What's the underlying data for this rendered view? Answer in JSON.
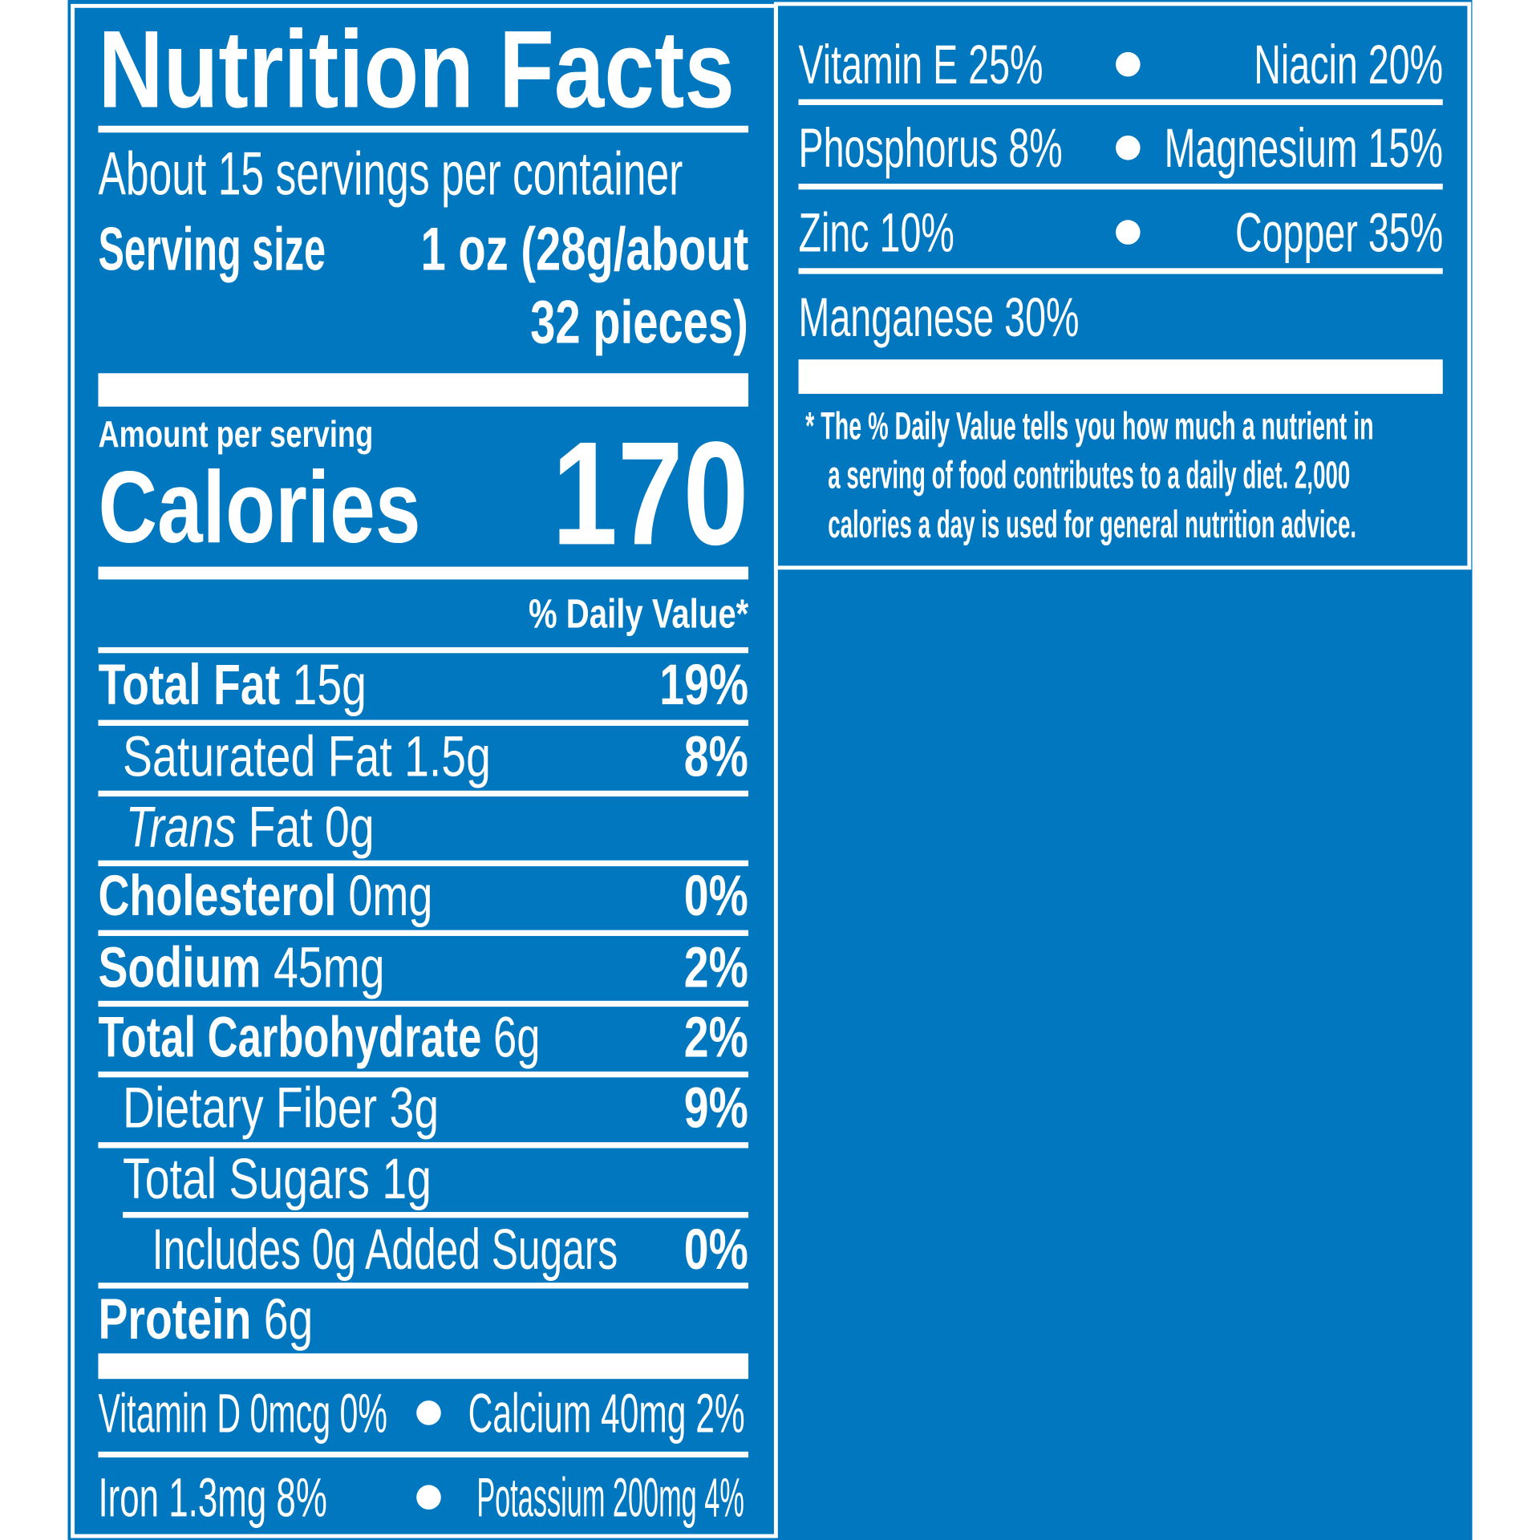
{
  "colors": {
    "background": "#0077be",
    "text": "#ffffff"
  },
  "title": "Nutrition Facts",
  "servings_per_container": "About 15 servings per container",
  "serving_size": {
    "label": "Serving size",
    "value_line1": "1 oz (28g/about",
    "value_line2": "32 pieces)"
  },
  "amount_per_serving": "Amount per serving",
  "calories": {
    "label": "Calories",
    "value": "170"
  },
  "daily_value_header": "% Daily Value*",
  "nutrients": [
    {
      "name": "Total Fat",
      "amount": "15g",
      "dv": "19%"
    },
    {
      "name": "Saturated Fat 1.5g",
      "amount": "",
      "dv": "8%"
    },
    {
      "name": "Trans",
      "amount": "Fat 0g",
      "dv": ""
    },
    {
      "name": "Cholesterol",
      "amount": "0mg",
      "dv": "0%"
    },
    {
      "name": "Sodium",
      "amount": "45mg",
      "dv": "2%"
    },
    {
      "name": "Total Carbohydrate",
      "amount": "6g",
      "dv": "2%"
    },
    {
      "name": "Dietary Fiber 3g",
      "amount": "",
      "dv": "9%"
    },
    {
      "name": "Total Sugars 1g",
      "amount": "",
      "dv": ""
    },
    {
      "name": "Includes 0g Added Sugars",
      "amount": "",
      "dv": "0%"
    },
    {
      "name": "Protein",
      "amount": "6g",
      "dv": ""
    }
  ],
  "vitamins_left": [
    {
      "a": "Vitamin D 0mcg 0%",
      "b": "Calcium 40mg 2%"
    },
    {
      "a": "Iron 1.3mg 8%",
      "b": "Potassium 200mg 4%"
    }
  ],
  "vitamins_right": [
    {
      "a": "Vitamin E 25%",
      "b": "Niacin 20%"
    },
    {
      "a": "Phosphorus 8%",
      "b": "Magnesium 15%"
    },
    {
      "a": "Zinc 10%",
      "b": "Copper 35%"
    },
    {
      "a": "Manganese 30%",
      "b": ""
    }
  ],
  "footnote": [
    "* The % Daily Value tells you how much a nutrient in",
    "a serving of food contributes to a daily diet. 2,000",
    "calories a day is used for general nutrition advice."
  ]
}
